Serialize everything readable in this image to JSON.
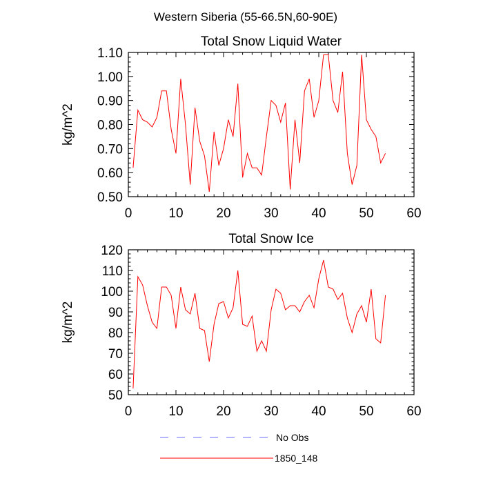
{
  "figure": {
    "suptitle": "Western Siberia (55-66.5N,60-90E)"
  },
  "chart_data": [
    {
      "type": "line",
      "title": "Total Snow Liquid Water",
      "xlabel": "",
      "ylabel": "kg/m^2",
      "xlim": [
        0,
        60
      ],
      "ylim": [
        0.5,
        1.1
      ],
      "xticks": [
        "0",
        "10",
        "20",
        "30",
        "40",
        "50",
        "60"
      ],
      "yticks": [
        "0.50",
        "0.60",
        "0.70",
        "0.80",
        "0.90",
        "1.00",
        "1.10"
      ],
      "series": [
        {
          "name": "1850_148",
          "color": "#ff0000",
          "x": [
            1,
            2,
            3,
            4,
            5,
            6,
            7,
            8,
            9,
            10,
            11,
            12,
            13,
            14,
            15,
            16,
            17,
            18,
            19,
            20,
            21,
            22,
            23,
            24,
            25,
            26,
            27,
            28,
            29,
            30,
            31,
            32,
            33,
            34,
            35,
            36,
            37,
            38,
            39,
            40,
            41,
            42,
            43,
            44,
            45,
            46,
            47,
            48,
            49,
            50,
            51,
            52,
            53,
            54
          ],
          "values": [
            0.62,
            0.86,
            0.82,
            0.81,
            0.79,
            0.83,
            0.94,
            0.94,
            0.78,
            0.68,
            0.99,
            0.8,
            0.55,
            0.87,
            0.73,
            0.67,
            0.52,
            0.77,
            0.63,
            0.7,
            0.82,
            0.75,
            0.97,
            0.58,
            0.68,
            0.62,
            0.62,
            0.59,
            0.75,
            0.9,
            0.88,
            0.81,
            0.89,
            0.53,
            0.82,
            0.64,
            0.94,
            0.99,
            0.83,
            0.9,
            1.09,
            1.09,
            0.9,
            0.85,
            1.02,
            0.68,
            0.55,
            0.63,
            1.09,
            0.82,
            0.78,
            0.75,
            0.64,
            0.68
          ]
        }
      ]
    },
    {
      "type": "line",
      "title": "Total Snow Ice",
      "xlabel": "",
      "ylabel": "kg/m^2",
      "xlim": [
        0,
        60
      ],
      "ylim": [
        50,
        120
      ],
      "xticks": [
        "0",
        "10",
        "20",
        "30",
        "40",
        "50",
        "60"
      ],
      "yticks": [
        "50",
        "60",
        "70",
        "80",
        "90",
        "100",
        "110",
        "120"
      ],
      "series": [
        {
          "name": "1850_148",
          "color": "#ff0000",
          "x": [
            1,
            2,
            3,
            4,
            5,
            6,
            7,
            8,
            9,
            10,
            11,
            12,
            13,
            14,
            15,
            16,
            17,
            18,
            19,
            20,
            21,
            22,
            23,
            24,
            25,
            26,
            27,
            28,
            29,
            30,
            31,
            32,
            33,
            34,
            35,
            36,
            37,
            38,
            39,
            40,
            41,
            42,
            43,
            44,
            45,
            46,
            47,
            48,
            49,
            50,
            51,
            52,
            53,
            54
          ],
          "values": [
            53,
            107,
            103,
            93,
            85,
            82,
            102,
            102,
            98,
            82,
            102,
            91,
            89,
            99,
            82,
            81,
            66,
            84,
            94,
            95,
            87,
            92,
            110,
            84,
            83,
            88,
            71,
            76,
            71,
            91,
            101,
            99,
            91,
            93,
            93,
            90,
            95,
            98,
            92,
            106,
            115,
            102,
            101,
            96,
            99,
            87,
            80,
            89,
            93,
            85,
            101,
            77,
            75,
            98
          ]
        }
      ]
    }
  ],
  "legend": {
    "placement": "bottom-center",
    "items": [
      {
        "label": "No Obs",
        "color": "#6a6aff",
        "dash": "dashed"
      },
      {
        "label": "1850_148",
        "color": "#ff0000",
        "dash": "solid"
      }
    ]
  }
}
